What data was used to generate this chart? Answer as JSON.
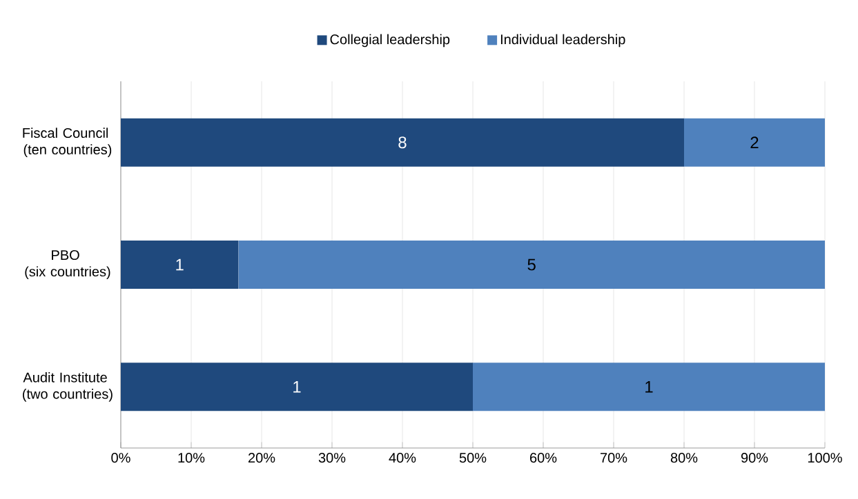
{
  "chart_data": {
    "type": "bar",
    "orientation": "horizontal",
    "stacked": true,
    "categories": [
      "Fiscal Council (ten countries)",
      "PBO (six countries)",
      "Audit Institute (two countries)"
    ],
    "series": [
      {
        "name": "Collegial leadership",
        "color": "#1f497d",
        "values": [
          80,
          16.7,
          50
        ]
      },
      {
        "name": "Individual leadership",
        "color": "#4f81bd",
        "values": [
          20,
          83.3,
          50
        ]
      }
    ],
    "annotations": [
      "8",
      "2",
      "1",
      "5",
      "1",
      "1"
    ],
    "xlim": [
      0,
      100
    ],
    "xticks": [
      {
        "value": 0,
        "label": "0%"
      },
      {
        "value": 10,
        "label": "10%"
      },
      {
        "value": 20,
        "label": "20%"
      },
      {
        "value": 30,
        "label": "30%"
      },
      {
        "value": 40,
        "label": "40%"
      },
      {
        "value": 50,
        "label": "50%"
      },
      {
        "value": 60,
        "label": "60%"
      },
      {
        "value": 70,
        "label": "70%"
      },
      {
        "value": 80,
        "label": "80%"
      },
      {
        "value": 90,
        "label": "90%"
      },
      {
        "value": 100,
        "label": "100%"
      }
    ],
    "grid": "x",
    "legend": "top"
  }
}
